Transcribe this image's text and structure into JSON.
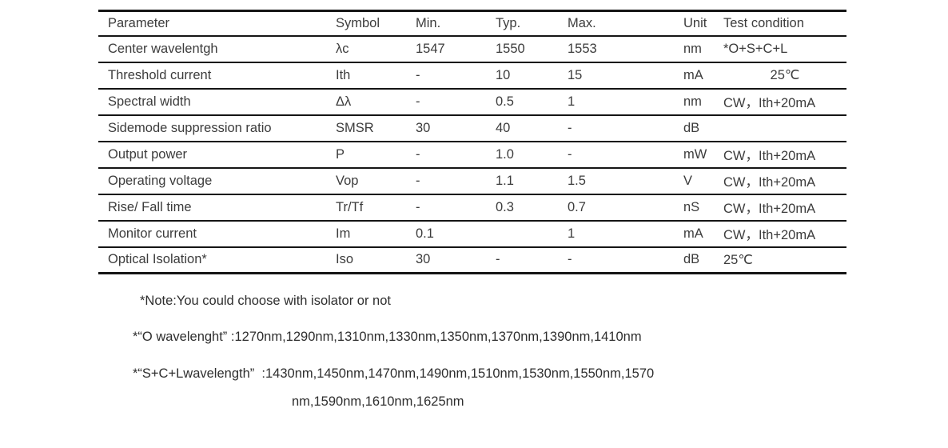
{
  "table": {
    "headers": [
      "Parameter",
      "Symbol",
      "Min.",
      "Typ.",
      "Max.",
      "Unit",
      "Test condition"
    ],
    "rows": [
      [
        "Center wavelentgh",
        "λc",
        "1547",
        "1550",
        "1553",
        "nm",
        "*O+S+C+L"
      ],
      [
        "Threshold current",
        "Ith",
        "-",
        "10",
        "15",
        "mA",
        "25℃"
      ],
      [
        "Spectral width",
        "Δλ",
        "-",
        "0.5",
        "1",
        "nm",
        "CW，Ith+20mA"
      ],
      [
        "Sidemode suppression ratio",
        "SMSR",
        "30",
        "40",
        "-",
        "dB",
        ""
      ],
      [
        "Output power",
        "P",
        "-",
        "1.0",
        "-",
        "mW",
        "CW，Ith+20mA"
      ],
      [
        "Operating voltage",
        "Vop",
        "-",
        "1.1",
        "1.5",
        "V",
        "CW，Ith+20mA"
      ],
      [
        "Rise/ Fall time",
        "Tr/Tf",
        "-",
        "0.3",
        "0.7",
        "nS",
        "CW，Ith+20mA"
      ],
      [
        "Monitor current",
        "Im",
        "0.1",
        "",
        "1",
        "mA",
        "CW，Ith+20mA"
      ],
      [
        "Optical Isolation*",
        "Iso",
        "30",
        "-",
        "-",
        "dB",
        "25℃"
      ]
    ]
  },
  "notes": {
    "note1": "*Note:You could choose with isolator or not",
    "note2": "*“O wavelenght” :1270nm,1290nm,1310nm,1330nm,1350nm,1370nm,1390nm,1410nm",
    "note3_line1": "*“S+C+Lwavelength”  :1430nm,1450nm,1470nm,1490nm,1510nm,1530nm,1550nm,1570",
    "note3_line2": "nm,1590nm,1610nm,1625nm"
  }
}
